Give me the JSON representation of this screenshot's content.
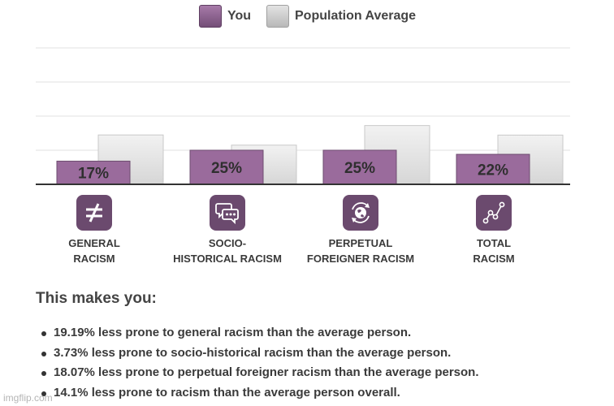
{
  "colors": {
    "you": "#9a6b9c",
    "population": "#dcdcdc",
    "icon_bg": "#6b4a6e"
  },
  "chart_data": {
    "type": "bar",
    "categories": [
      "GENERAL RACISM",
      "SOCIO-HISTORICAL RACISM",
      "PERPETUAL FOREIGNER RACISM",
      "TOTAL RACISM"
    ],
    "series": [
      {
        "name": "You",
        "values": [
          17,
          25,
          25,
          22
        ]
      },
      {
        "name": "Population Average",
        "values": [
          36.19,
          28.73,
          43.07,
          36.1
        ]
      }
    ],
    "data_labels": [
      "17%",
      "25%",
      "25%",
      "22%"
    ],
    "ylim": [
      0,
      100
    ],
    "grid": true,
    "legend": "top-center",
    "title": "",
    "xlabel": "",
    "ylabel": ""
  },
  "legend": {
    "you": "You",
    "population": "Population Average"
  },
  "categories": [
    {
      "line1": "GENERAL",
      "line2": "RACISM",
      "icon": "not-equal-icon"
    },
    {
      "line1": "SOCIO-",
      "line2": "HISTORICAL RACISM",
      "icon": "chat-bubbles-icon"
    },
    {
      "line1": "PERPETUAL",
      "line2": "FOREIGNER RACISM",
      "icon": "globe-refresh-icon"
    },
    {
      "line1": "TOTAL",
      "line2": "RACISM",
      "icon": "line-graph-icon"
    }
  ],
  "summary": {
    "title": "This makes you:",
    "items": [
      "19.19% less prone to general racism than the average person.",
      "3.73% less prone to socio-historical racism than the average person.",
      "18.07% less prone to perpetual foreigner racism than the average person.",
      "14.1% less prone to racism than the average person overall."
    ]
  },
  "watermark": "imgflip.com"
}
